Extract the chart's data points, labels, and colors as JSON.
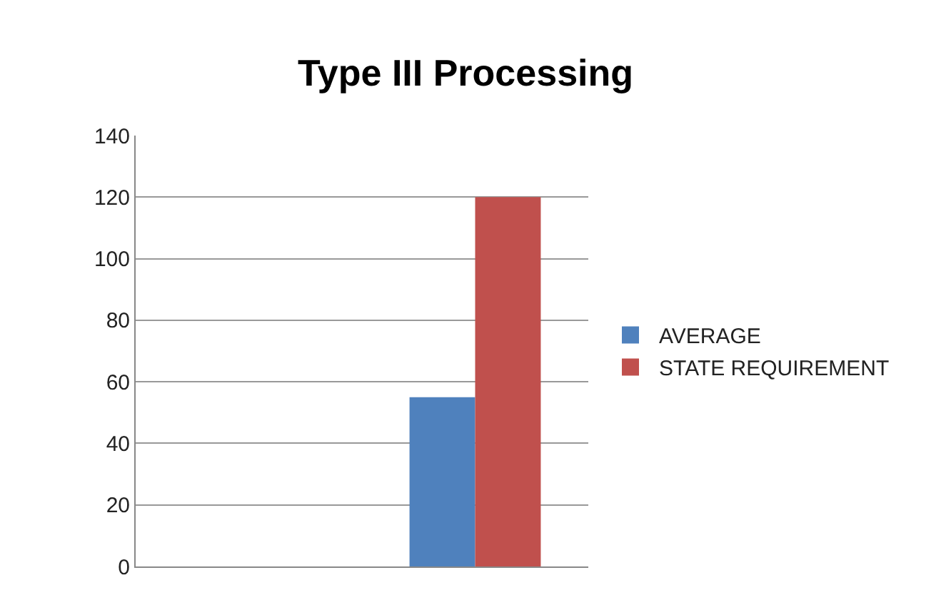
{
  "chart_data": {
    "type": "bar",
    "title": "Type III Processing",
    "categories": [
      null,
      null
    ],
    "series": [
      {
        "name": "AVERAGE",
        "color": "#4f81bd",
        "values": [
          null,
          55
        ]
      },
      {
        "name": "STATE REQUIREMENT",
        "color": "#c0504d",
        "values": [
          null,
          120
        ]
      }
    ],
    "ylim": [
      0,
      140
    ],
    "yticks": [
      0,
      20,
      40,
      60,
      80,
      100,
      120,
      140
    ],
    "grid": "y",
    "legend": "right"
  }
}
